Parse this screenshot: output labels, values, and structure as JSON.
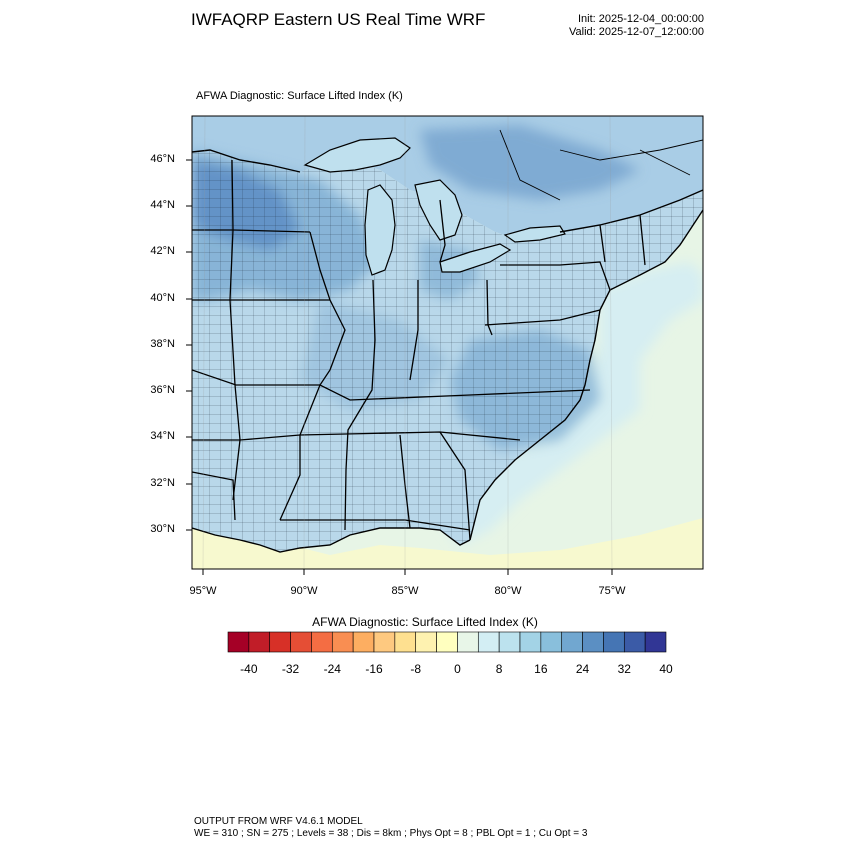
{
  "header": {
    "title": "IWFAQRP Eastern US Real Time WRF",
    "init": "Init: 2025-12-04_00:00:00",
    "valid": "Valid: 2025-12-07_12:00:00"
  },
  "map": {
    "subtitle": "AFWA Diagnostic: Surface Lifted Index   (K)",
    "lat_labels": [
      "46°N",
      "44°N",
      "42°N",
      "40°N",
      "38°N",
      "36°N",
      "34°N",
      "32°N",
      "30°N"
    ],
    "lon_labels": [
      "95°W",
      "90°W",
      "85°W",
      "80°W",
      "75°W"
    ],
    "colors": {
      "ocean_far": "#e7f5e6",
      "ocean_near": "#d6eef2",
      "gulf": "#f7f9cf",
      "great_lakes": "#bfe0ee",
      "land_base": "#b9d8ea",
      "land_dark": "#7faed3",
      "land_darkest": "#5d8dc4"
    }
  },
  "colorbar": {
    "title": "AFWA Diagnostic: Surface Lifted Index  (K)",
    "tick_labels": [
      "-40",
      "-32",
      "-24",
      "-16",
      "-8",
      "0",
      "8",
      "16",
      "24",
      "32",
      "40"
    ],
    "colors": [
      "#a50026",
      "#c11d28",
      "#d73027",
      "#e54e35",
      "#f46d43",
      "#f98e52",
      "#fdae61",
      "#fec980",
      "#fee090",
      "#fef2b0",
      "#ffffbf",
      "#e8f6e8",
      "#d3eef4",
      "#bce2ee",
      "#a3d3e6",
      "#89bfdc",
      "#71a7d0",
      "#5b8fc3",
      "#4575b4",
      "#3b5ba7",
      "#313695"
    ]
  },
  "footer": {
    "line1": "OUTPUT FROM WRF V4.6.1 MODEL",
    "line2": "WE = 310 ; SN = 275 ; Levels = 38 ; Dis = 8km ; Phys Opt = 8 ; PBL Opt = 1 ; Cu Opt = 3"
  }
}
